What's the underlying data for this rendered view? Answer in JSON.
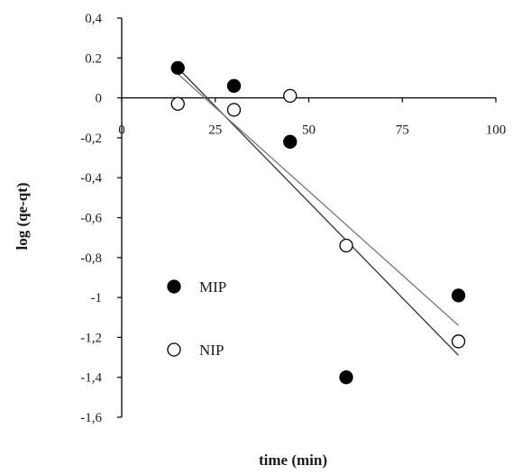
{
  "chart_data": {
    "type": "scatter",
    "xlabel": "time (min)",
    "ylabel": "log (qe-qt)",
    "xlim": [
      0,
      100
    ],
    "ylim": [
      -1.6,
      0.4
    ],
    "x_ticks": [
      {
        "value": 0,
        "label": "0"
      },
      {
        "value": 25,
        "label": "25"
      },
      {
        "value": 50,
        "label": "50"
      },
      {
        "value": 75,
        "label": "75"
      },
      {
        "value": 100,
        "label": "100"
      }
    ],
    "y_ticks": [
      {
        "value": 0.4,
        "label": "0,4"
      },
      {
        "value": 0.2,
        "label": "0.2"
      },
      {
        "value": 0,
        "label": "0"
      },
      {
        "value": -0.2,
        "label": "-0,2"
      },
      {
        "value": -0.4,
        "label": "-0,4"
      },
      {
        "value": -0.6,
        "label": "-0,6"
      },
      {
        "value": -0.8,
        "label": "-0,8"
      },
      {
        "value": -1,
        "label": "-1"
      },
      {
        "value": -1.2,
        "label": "-1,2"
      },
      {
        "value": -1.4,
        "label": "-1,4"
      },
      {
        "value": -1.6,
        "label": "-1,6"
      }
    ],
    "grid": false,
    "legend_position": "lower-left inside",
    "series": [
      {
        "name": "MIP",
        "marker": "filled-circle",
        "color": "#000000",
        "x": [
          15,
          30,
          45,
          60,
          90
        ],
        "y": [
          0.15,
          0.06,
          -0.22,
          -1.4,
          -0.99
        ],
        "trendline": {
          "x": [
            15,
            90
          ],
          "y": [
            0.15,
            -1.29
          ],
          "color": "#333333"
        }
      },
      {
        "name": "NIP",
        "marker": "open-circle",
        "color": "#000000",
        "x": [
          15,
          30,
          45,
          60,
          90
        ],
        "y": [
          -0.03,
          -0.06,
          0.01,
          -0.74,
          -1.22
        ],
        "trendline": {
          "x": [
            15,
            90
          ],
          "y": [
            0.12,
            -1.14
          ],
          "color": "#777777"
        }
      }
    ]
  }
}
